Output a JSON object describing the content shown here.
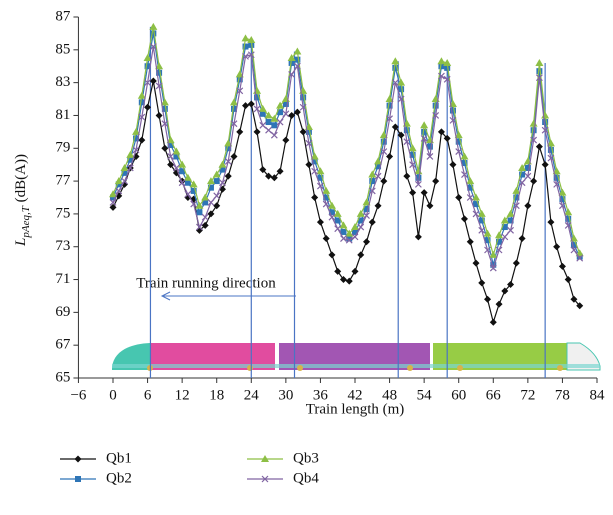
{
  "chart_data": {
    "type": "line",
    "xlabel": "Train length (m)",
    "ylabel": {
      "main": "L",
      "sub": "pAeq,T",
      "unit": " (dB(A))"
    },
    "annotation": "Train running direction",
    "xlim": [
      -6,
      84
    ],
    "xticks": [
      {
        "value": -6,
        "label": "−6"
      },
      0,
      6,
      12,
      18,
      24,
      30,
      36,
      42,
      48,
      54,
      60,
      66,
      72,
      78,
      84
    ],
    "ylim": [
      65,
      87
    ],
    "yticks": [
      65,
      67,
      69,
      71,
      73,
      75,
      77,
      79,
      81,
      83,
      85,
      87
    ],
    "grid": false,
    "vlines": [
      6.5,
      24,
      31.5,
      49.5,
      58,
      75
    ],
    "vline_color": "#4a74c4",
    "x": [
      0,
      1,
      2,
      3,
      4,
      5,
      6,
      7,
      8,
      9,
      10,
      11,
      12,
      13,
      14,
      15,
      16,
      17,
      18,
      19,
      20,
      21,
      22,
      23,
      24,
      25,
      26,
      27,
      28,
      29,
      30,
      31,
      32,
      33,
      34,
      35,
      36,
      37,
      38,
      39,
      40,
      41,
      42,
      43,
      44,
      45,
      46,
      47,
      48,
      49,
      50,
      51,
      52,
      53,
      54,
      55,
      56,
      57,
      58,
      59,
      60,
      61,
      62,
      63,
      64,
      65,
      66,
      67,
      68,
      69,
      70,
      71,
      72,
      73,
      74,
      75,
      76,
      77,
      78,
      79,
      80,
      81
    ],
    "series": [
      {
        "name": "Qb1",
        "color": "#111111",
        "marker": "diamond",
        "values": [
          75.4,
          76.1,
          76.8,
          77.8,
          78.5,
          79.5,
          81.5,
          83.1,
          81,
          79,
          78,
          77.5,
          77,
          76,
          75.9,
          74,
          74.3,
          75,
          75.5,
          76.5,
          77.3,
          78.5,
          80,
          81.6,
          81.7,
          80,
          77.7,
          77.3,
          77.2,
          77.6,
          79.5,
          81,
          81.2,
          80,
          78,
          76,
          74.5,
          73.5,
          72.5,
          71.5,
          71,
          70.9,
          71.5,
          72.5,
          73.3,
          74.5,
          75.5,
          77,
          78.5,
          80.3,
          79.8,
          77.3,
          76.3,
          73.6,
          76.3,
          75.5,
          77,
          80,
          79.6,
          78,
          76,
          74.7,
          73.3,
          72,
          70.8,
          69.8,
          68.4,
          69.5,
          70.3,
          70.7,
          72,
          73.5,
          75.5,
          77,
          79.1,
          78,
          74.5,
          73,
          71.8,
          71,
          69.8,
          69.4
        ]
      },
      {
        "name": "Qb2",
        "color": "#2e75b6",
        "marker": "square",
        "values": [
          76.0,
          76.8,
          77.5,
          78.3,
          79.6,
          81.8,
          84.0,
          86.0,
          83.6,
          81.4,
          79.2,
          78.5,
          77.6,
          76.9,
          76.4,
          75.1,
          75.7,
          76.6,
          77.0,
          77.7,
          79.0,
          81.4,
          83.2,
          85.2,
          85.3,
          82.1,
          81.1,
          80.6,
          80.4,
          81.2,
          81.7,
          84.2,
          84.4,
          82.1,
          80.0,
          78.2,
          77.2,
          76.0,
          75.1,
          74.6,
          73.9,
          73.5,
          73.9,
          74.6,
          75.3,
          77.0,
          77.9,
          79.4,
          81.6,
          83.9,
          82.6,
          80.1,
          78.6,
          77.2,
          80.0,
          79.1,
          81.6,
          84.0,
          83.9,
          81.3,
          79.4,
          78.1,
          76.6,
          75.6,
          74.6,
          73.4,
          71.9,
          73.3,
          74.2,
          74.6,
          76.0,
          77.4,
          77.8,
          80.1,
          83.7,
          80.6,
          78.9,
          77.2,
          75.9,
          74.7,
          73.1,
          72.4
        ]
      },
      {
        "name": "Qb3",
        "color": "#8dbf45",
        "marker": "triangle",
        "values": [
          76.2,
          77,
          77.8,
          78.6,
          80,
          82.2,
          84.5,
          86.4,
          84,
          81.8,
          79.5,
          78.8,
          78,
          77.2,
          76.8,
          75.5,
          76,
          77,
          77.4,
          78,
          79.3,
          81.8,
          83.5,
          85.7,
          85.6,
          82.5,
          81.4,
          81,
          80.8,
          81.6,
          82,
          84.5,
          84.9,
          82.5,
          80.3,
          78.5,
          77.6,
          76.4,
          75.5,
          75,
          74.3,
          73.8,
          74.2,
          75,
          75.7,
          77.4,
          78.2,
          79.8,
          82,
          84.3,
          83,
          80.5,
          79,
          77.6,
          80.4,
          79.5,
          82,
          84.3,
          84.2,
          81.7,
          79.8,
          78.5,
          77,
          76,
          75,
          73.8,
          72.5,
          73.7,
          74.6,
          75,
          76.4,
          77.8,
          78.2,
          80.5,
          84.2,
          81,
          79.3,
          77.6,
          76.3,
          75.1,
          73.5,
          72.6
        ]
      },
      {
        "name": "Qb4",
        "color": "#8064a2",
        "marker": "x",
        "values": [
          75.7,
          76.4,
          77.0,
          77.8,
          78.9,
          80.9,
          83.0,
          85.2,
          82.8,
          80.5,
          78.5,
          77.8,
          76.9,
          76.2,
          75.6,
          74.2,
          74.8,
          75.7,
          76.1,
          76.9,
          78.2,
          80.5,
          82.5,
          84.6,
          84.7,
          81.4,
          80.4,
          80.1,
          79.8,
          80.6,
          81.1,
          83.5,
          84.0,
          81.5,
          79.3,
          77.6,
          76.7,
          75.6,
          74.8,
          74.1,
          73.5,
          73.4,
          73.6,
          74.2,
          74.9,
          76.4,
          77.3,
          78.8,
          80.8,
          83.0,
          82.0,
          79.4,
          78.0,
          76.8,
          79.6,
          78.5,
          81.0,
          83.4,
          83.2,
          80.7,
          78.8,
          77.4,
          76.0,
          75.0,
          74.0,
          72.8,
          71.7,
          72.8,
          73.6,
          74.0,
          75.5,
          76.9,
          77.3,
          79.5,
          83.3,
          80.1,
          78.4,
          76.8,
          75.5,
          74.3,
          72.8,
          72.3
        ]
      }
    ]
  }
}
